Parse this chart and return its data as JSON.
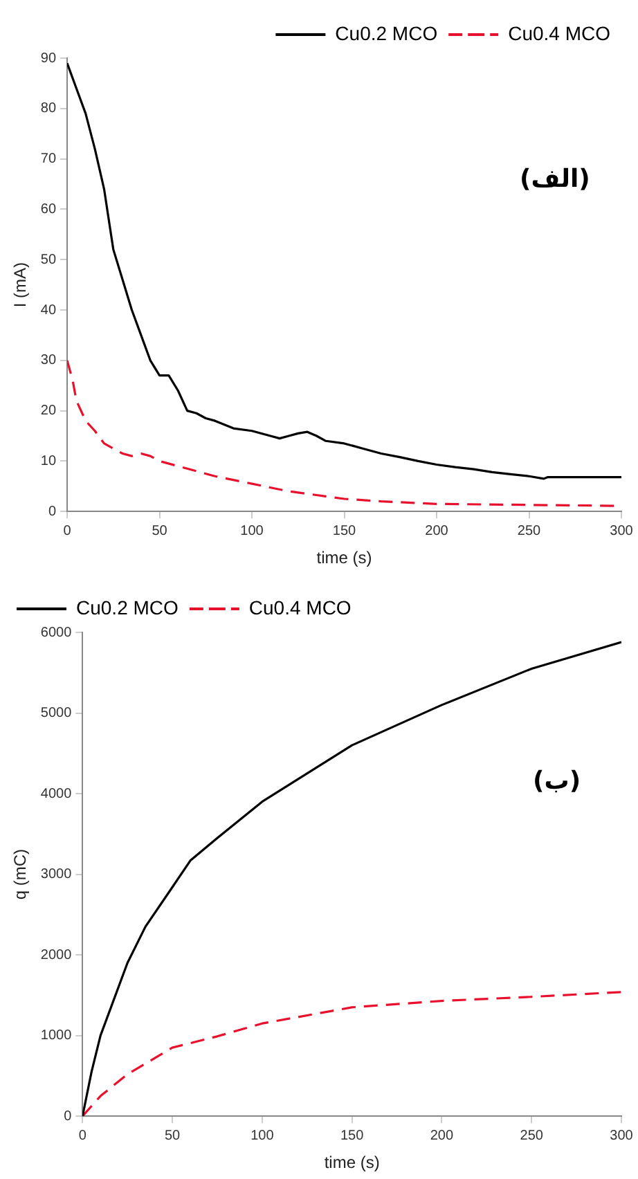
{
  "chart_data": [
    {
      "type": "line",
      "xlabel": "time (s)",
      "ylabel": "I (mA)",
      "xlim": [
        0,
        300
      ],
      "xticks": [
        0,
        50,
        100,
        150,
        200,
        250,
        300
      ],
      "ylim": [
        0,
        90
      ],
      "yticks": [
        0,
        10,
        20,
        30,
        40,
        50,
        60,
        70,
        80,
        90
      ],
      "grid": false,
      "legend": "top right",
      "annotations": [
        "(الف)"
      ],
      "series": [
        {
          "name": "Cu0.2 MCO",
          "color": "#000000",
          "line_style": "solid",
          "x": [
            0,
            2,
            5,
            10,
            15,
            20,
            25,
            30,
            35,
            40,
            45,
            50,
            55,
            60,
            65,
            70,
            75,
            80,
            90,
            100,
            110,
            115,
            120,
            125,
            130,
            135,
            140,
            150,
            160,
            170,
            180,
            190,
            200,
            210,
            220,
            230,
            240,
            250,
            258,
            260,
            300
          ],
          "values": [
            89,
            87,
            84,
            79,
            72,
            64,
            52,
            46,
            40,
            35,
            30,
            27,
            27,
            24,
            20,
            19.5,
            18.5,
            18,
            16.5,
            16,
            15,
            14.5,
            15,
            15.5,
            15.8,
            15,
            14,
            13.5,
            12.5,
            11.5,
            10.8,
            10,
            9.3,
            8.8,
            8.4,
            7.8,
            7.4,
            7,
            6.5,
            6.8,
            6.8
          ]
        },
        {
          "name": "Cu0.4 MCO",
          "color": "#e8112d",
          "line_style": "dashed",
          "x": [
            0,
            3,
            5,
            10,
            15,
            20,
            25,
            30,
            35,
            40,
            45,
            50,
            60,
            70,
            80,
            100,
            120,
            140,
            150,
            170,
            200,
            250,
            300
          ],
          "values": [
            30,
            26,
            22,
            18,
            16,
            13.5,
            12.5,
            11.5,
            11,
            11.5,
            11,
            10,
            9,
            8,
            7,
            5.5,
            4,
            3,
            2.5,
            2,
            1.5,
            1.3,
            1.1
          ]
        }
      ]
    },
    {
      "type": "line",
      "xlabel": "time (s)",
      "ylabel": "q (mC)",
      "xlim": [
        0,
        300
      ],
      "xticks": [
        0,
        50,
        100,
        150,
        200,
        250,
        300
      ],
      "ylim": [
        0,
        6000
      ],
      "yticks": [
        0,
        1000,
        2000,
        3000,
        4000,
        5000,
        6000
      ],
      "grid": false,
      "legend": "top left",
      "annotations": [
        "(ب)"
      ],
      "series": [
        {
          "name": "Cu0.2 MCO",
          "color": "#000000",
          "line_style": "solid",
          "x": [
            0,
            5,
            10,
            25,
            35,
            50,
            60,
            75,
            100,
            150,
            200,
            250,
            300
          ],
          "values": [
            0,
            550,
            1000,
            1900,
            2350,
            2840,
            3170,
            3450,
            3900,
            4600,
            5100,
            5550,
            5880
          ]
        },
        {
          "name": "Cu0.4 MCO",
          "color": "#e8112d",
          "line_style": "dashed",
          "x": [
            0,
            10,
            25,
            50,
            75,
            100,
            150,
            200,
            250,
            300
          ],
          "values": [
            0,
            250,
            520,
            850,
            990,
            1150,
            1350,
            1430,
            1480,
            1540
          ]
        }
      ]
    }
  ]
}
